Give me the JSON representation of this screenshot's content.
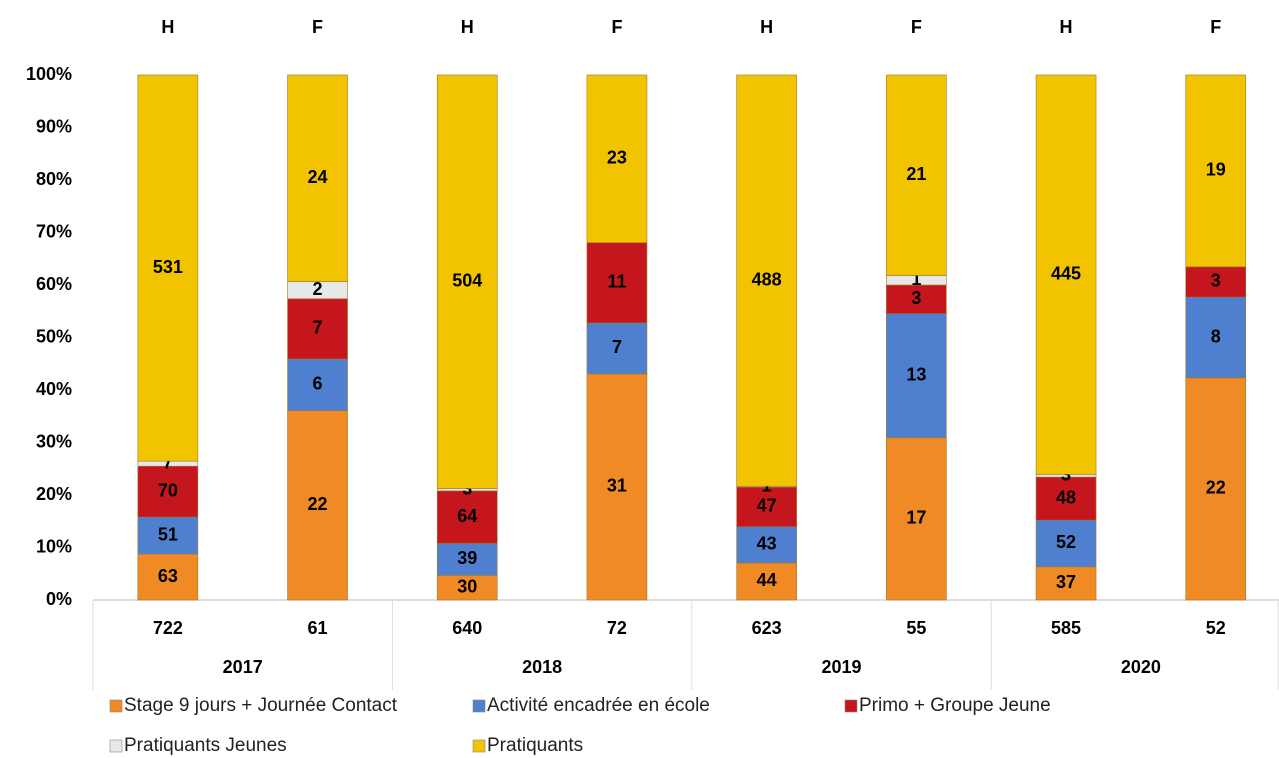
{
  "chart_data": {
    "type": "stacked_bar_percent",
    "top_labels": [
      "H",
      "F",
      "H",
      "F",
      "H",
      "F",
      "H",
      "F"
    ],
    "categories": [
      "722",
      "61",
      "640",
      "72",
      "623",
      "55",
      "585",
      "52"
    ],
    "groups": [
      "2017",
      "2018",
      "2019",
      "2020"
    ],
    "series": [
      {
        "name": "Stage 9 jours + Journée Contact",
        "color": "#f08a24",
        "values": [
          63,
          22,
          30,
          31,
          44,
          17,
          37,
          22
        ]
      },
      {
        "name": "Activité encadrée en école",
        "color": "#4f80d0",
        "values": [
          51,
          6,
          39,
          7,
          43,
          13,
          52,
          8
        ]
      },
      {
        "name": "Primo + Groupe Jeune",
        "color": "#c4161c",
        "values": [
          70,
          7,
          64,
          11,
          47,
          3,
          48,
          3
        ]
      },
      {
        "name": "Pratiquants Jeunes",
        "color": "#e8e8e8",
        "values": [
          7,
          2,
          3,
          null,
          1,
          1,
          3,
          null
        ]
      },
      {
        "name": "Pratiquants",
        "color": "#f2c400",
        "values": [
          531,
          24,
          504,
          23,
          488,
          21,
          445,
          19
        ]
      }
    ],
    "ylim": [
      0,
      100
    ],
    "yticks": [
      {
        "value": 0,
        "label": "0%"
      },
      {
        "value": 10,
        "label": "10%"
      },
      {
        "value": 20,
        "label": "20%"
      },
      {
        "value": 30,
        "label": "30%"
      },
      {
        "value": 40,
        "label": "40%"
      },
      {
        "value": 50,
        "label": "50%"
      },
      {
        "value": 60,
        "label": "60%"
      },
      {
        "value": 70,
        "label": "70%"
      },
      {
        "value": 80,
        "label": "80%"
      },
      {
        "value": 90,
        "label": "90%"
      },
      {
        "value": 100,
        "label": "100%"
      }
    ]
  }
}
